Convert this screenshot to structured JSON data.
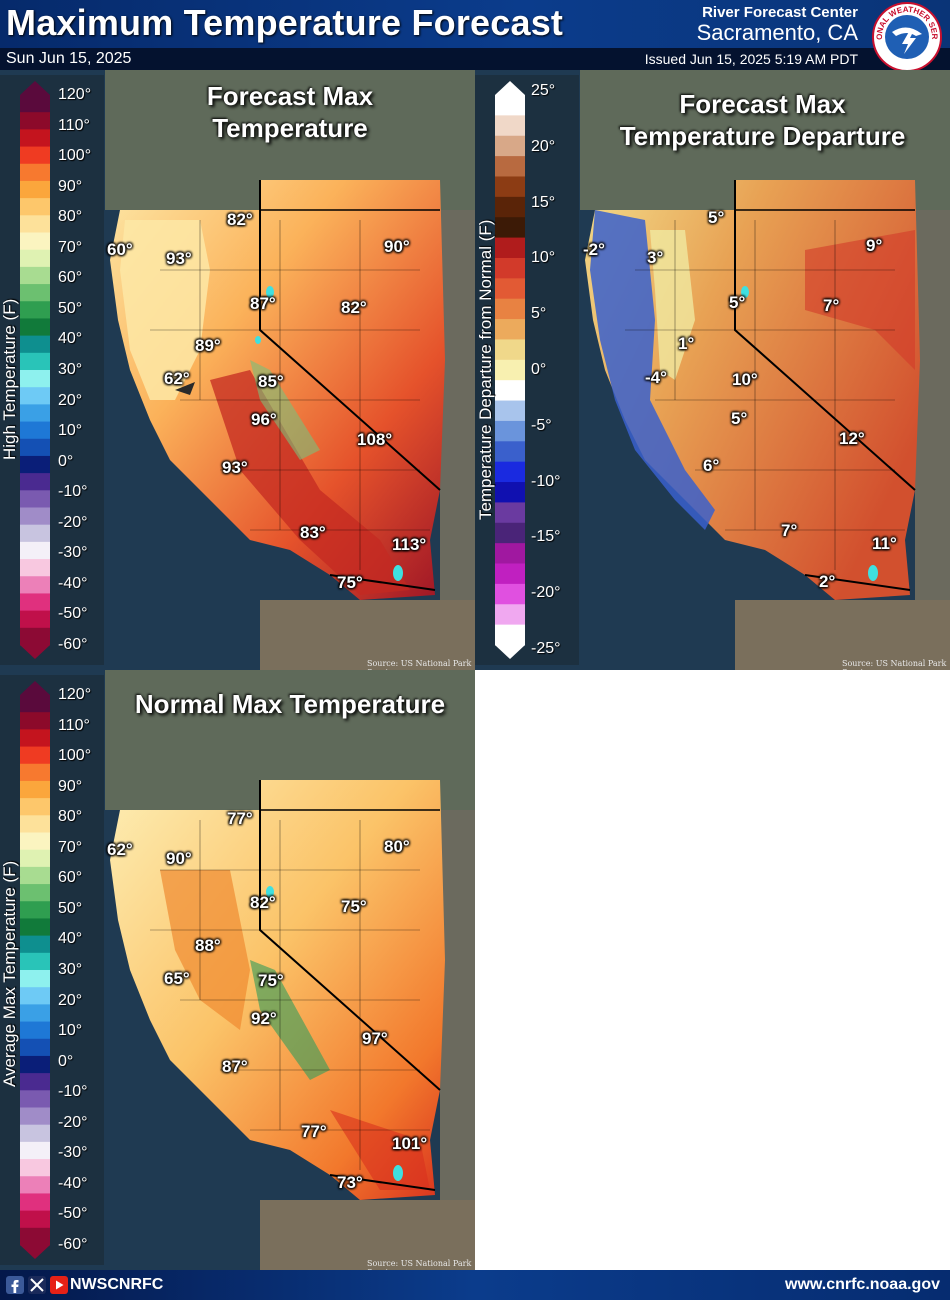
{
  "header": {
    "title": "Maximum Temperature Forecast",
    "date": "Sun Jun 15, 2025",
    "office_line1": "River Forecast Center",
    "office_line2": "Sacramento, CA",
    "issued": "Issued Jun 15, 2025 5:19 AM PDT"
  },
  "logo": {
    "icon": "nws-logo-icon",
    "text": "NATIONAL WEATHER SERVICE"
  },
  "source_text": "Source: US National Park Service",
  "temp_legend": {
    "ticks": [
      "120°",
      "110°",
      "100°",
      "90°",
      "80°",
      "70°",
      "60°",
      "50°",
      "40°",
      "30°",
      "20°",
      "10°",
      "0°",
      "-10°",
      "-20°",
      "-30°",
      "-40°",
      "-50°",
      "-60°"
    ],
    "colors": [
      "#5a0a3c",
      "#8c0a2a",
      "#c4141e",
      "#ef3b22",
      "#f7792f",
      "#fba63c",
      "#fdc76b",
      "#fde19a",
      "#fbf4c0",
      "#dff2b2",
      "#a8dc91",
      "#6cc070",
      "#2f9e50",
      "#117a3a",
      "#0e8f8f",
      "#29c4b8",
      "#8ef1ee",
      "#6ecaf5",
      "#3aa0e6",
      "#1e78d6",
      "#1450b4",
      "#0a1e78",
      "#4a2a90",
      "#7a5ab0",
      "#a08cc8",
      "#c8c4e0",
      "#f4f0f8",
      "#f8c8e0",
      "#ec80b8",
      "#e0307e",
      "#c0104a",
      "#8c0a34"
    ]
  },
  "departure_legend": {
    "ticks": [
      "25°",
      "20°",
      "15°",
      "10°",
      "5°",
      "0°",
      "-5°",
      "-10°",
      "-15°",
      "-20°",
      "-25°"
    ],
    "colors": [
      "#ffffff",
      "#f0d8c8",
      "#d8a888",
      "#b86a40",
      "#8c3c14",
      "#5a2408",
      "#3c1a06",
      "#b01c1c",
      "#d23a2a",
      "#e25a34",
      "#e88242",
      "#ecaa5c",
      "#f0d88a",
      "#f8f0b0",
      "#ffffff",
      "#a8c4ec",
      "#6a94dc",
      "#3a60cc",
      "#1a2ae0",
      "#1010b0",
      "#6a3aa0",
      "#4a2478",
      "#a018a0",
      "#c020c0",
      "#e050e0",
      "#f0a8f0",
      "#ffffff"
    ]
  },
  "panels": [
    {
      "name": "forecast-max",
      "title": "Forecast Max Temperature",
      "legend_title": "High Temperature (F)",
      "labels": [
        "82°",
        "90°",
        "60°",
        "93°",
        "87°",
        "82°",
        "89°",
        "62°",
        "85°",
        "96°",
        "108°",
        "93°",
        "83°",
        "113°",
        "75°"
      ]
    },
    {
      "name": "departure",
      "title": "Forecast Max Temperature Departure",
      "legend_title": "Temperature Departure from Normal (F)",
      "labels": [
        "5°",
        "9°",
        "-2°",
        "3°",
        "5°",
        "7°",
        "1°",
        "-4°",
        "10°",
        "5°",
        "12°",
        "6°",
        "7°",
        "11°",
        "2°"
      ]
    },
    {
      "name": "normal-max",
      "title": "Normal Max Temperature",
      "legend_title": "Average Max Temperature (F)",
      "labels": [
        "77°",
        "80°",
        "62°",
        "90°",
        "82°",
        "75°",
        "88°",
        "65°",
        "75°",
        "92°",
        "97°",
        "87°",
        "77°",
        "101°",
        "73°"
      ]
    }
  ],
  "footer": {
    "handle": "NWSCNRFC",
    "website": "www.cnrfc.noaa.gov",
    "icons": [
      "facebook-icon",
      "x-icon",
      "youtube-icon"
    ]
  }
}
